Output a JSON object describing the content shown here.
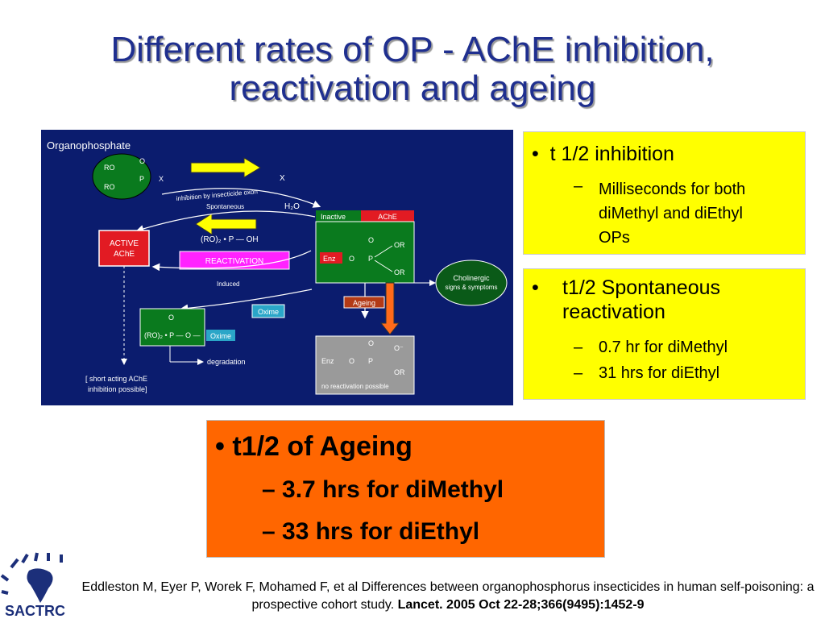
{
  "title": {
    "line1": "Different rates of OP - AChE inhibition,",
    "line2": "reactivation and ageing"
  },
  "diagram": {
    "header": "Organophosphate",
    "ro1": "RO",
    "ro2": "RO",
    "p": "P",
    "o": "O",
    "x": "X",
    "x_free": "X",
    "inhibition_label": "inhibition by insecticide oxon",
    "spontaneous_label": "Spontaneous",
    "h2o": "H₂O",
    "active_line1": "ACTIVE",
    "active_line2": "AChE",
    "ro2p_oh": "(RO)₂ • P — OH",
    "reactivation": "REACTIVATION",
    "induced": "Induced",
    "inactive": "Inactive",
    "ache": "AChE",
    "enz": "Enz",
    "or": "OR",
    "ageing": "Ageing",
    "cholinergic_line1": "Cholinergic",
    "cholinergic_line2": "signs & symptoms",
    "oxime": "Oxime",
    "ro2_p_o": "(RO)₂ • P — O —",
    "oxime_tag": "Oxime",
    "degradation": "degradation",
    "no_reactivation": "no reactivation possible",
    "short_acting_line1": "[ short acting AChE",
    "short_acting_line2": "inhibition possible]",
    "o_minus": "O⁻"
  },
  "box_inhibition": {
    "bullet": "t 1/2 inhibition",
    "sub_line1": "Milliseconds for both",
    "sub_line2": "diMethyl and diEthyl",
    "sub_line3": "OPs"
  },
  "box_spontaneous": {
    "bullet_line1": "t1/2 Spontaneous",
    "bullet_line2": "reactivation",
    "sub1": "0.7 hr for diMethyl",
    "sub2": "31 hrs for diEthyl"
  },
  "box_ageing": {
    "bullet": "t1/2 of Ageing",
    "sub1": "3.7 hrs for diMethyl",
    "sub2": "33 hrs for diEthyl"
  },
  "reference": {
    "text": "Eddleston M, Eyer P, Worek F, Mohamed F, et al  Differences between organophosphorus insecticides in human self-poisoning: a prospective cohort study. ",
    "citation": "Lancet. 2005 Oct 22-28;366(9495):1452-9"
  },
  "logo": {
    "text": "SACTRC"
  },
  "colors": {
    "title": "#1f2f8f",
    "diagram_bg": "#0b1c6e",
    "yellow_box": "#ffff00",
    "orange_box": "#ff6600",
    "green": "#0a7a1e",
    "red": "#e21b23",
    "magenta": "#ff22ff",
    "cyan": "#2aa6c8"
  }
}
